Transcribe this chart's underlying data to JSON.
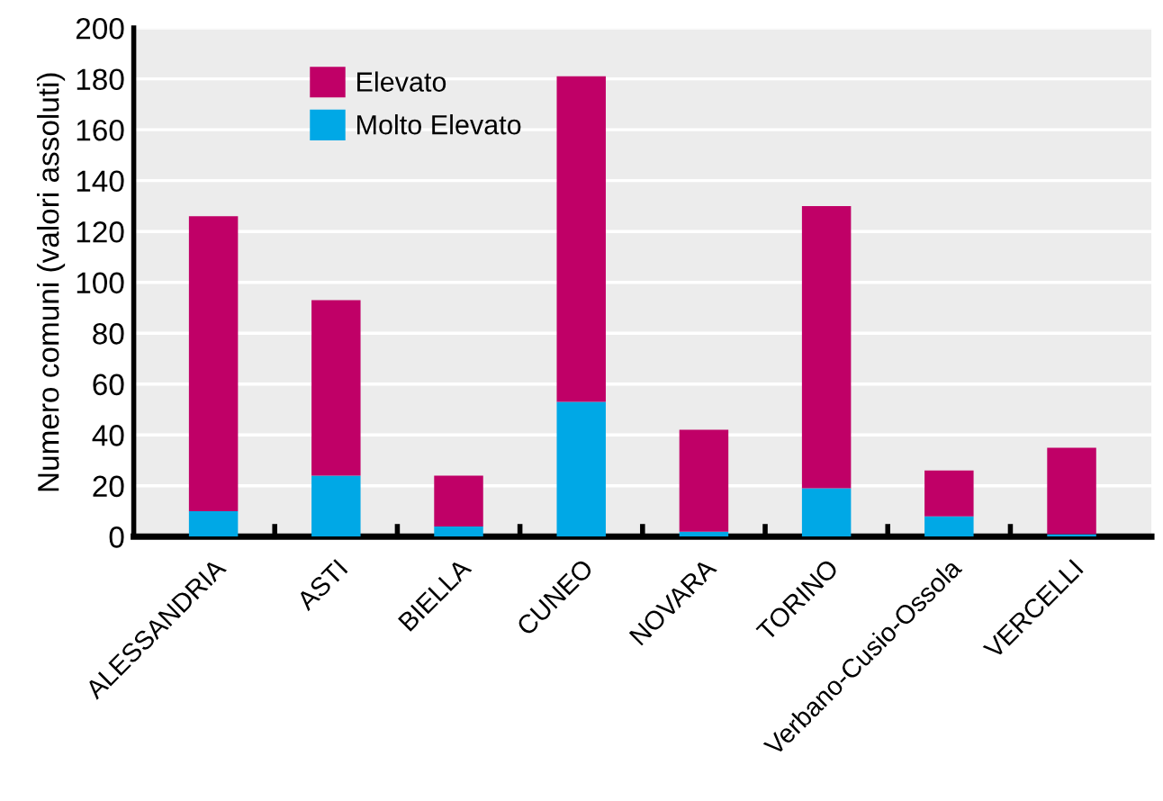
{
  "chart_data": {
    "type": "bar",
    "stacked": true,
    "ylabel": "Numero comuni (valori assoluti)",
    "categories": [
      "ALESSANDRIA",
      "ASTI",
      "BIELLA",
      "CUNEO",
      "NOVARA",
      "TORINO",
      "Verbano-Cusio-Ossola",
      "VERCELLI"
    ],
    "series": [
      {
        "name": "Molto Elevato",
        "color": "#00a8e6",
        "values": [
          10,
          24,
          4,
          53,
          2,
          19,
          8,
          1
        ]
      },
      {
        "name": "Elevato",
        "color": "#c00067",
        "values": [
          116,
          69,
          20,
          128,
          40,
          111,
          18,
          34
        ]
      }
    ],
    "ylim": [
      0,
      200
    ],
    "yticks": [
      0,
      20,
      40,
      60,
      80,
      100,
      120,
      140,
      160,
      180,
      200
    ],
    "grid": "y",
    "legend": "top left"
  }
}
